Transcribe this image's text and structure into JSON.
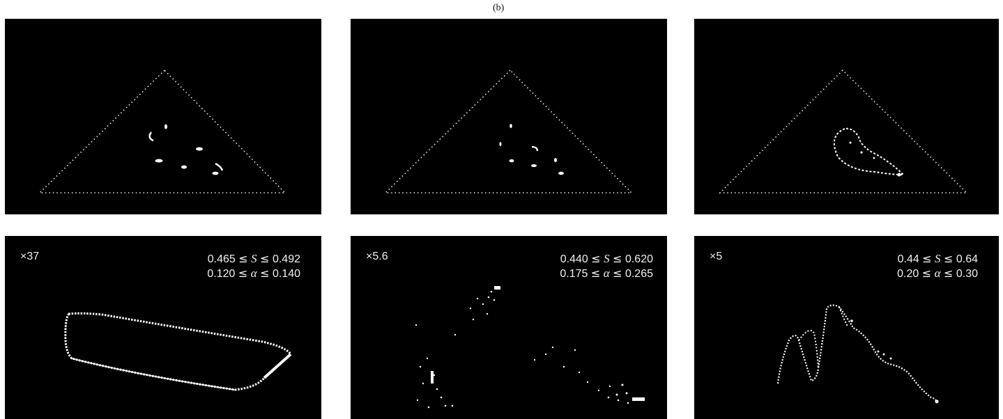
{
  "figure_label": "(b)",
  "panels": [
    {
      "magnification": "×37",
      "s_range": {
        "low": "0.465",
        "high": "0.492",
        "symbol": "S"
      },
      "alpha_range": {
        "low": "0.120",
        "high": "0.140",
        "symbol": "α"
      }
    },
    {
      "magnification": "×5.6",
      "s_range": {
        "low": "0.440",
        "high": "0.620",
        "symbol": "S"
      },
      "alpha_range": {
        "low": "0.175",
        "high": "0.265",
        "symbol": "α"
      }
    },
    {
      "magnification": "×5",
      "s_range": {
        "low": "0.44",
        "high": "0.64",
        "symbol": "S"
      },
      "alpha_range": {
        "low": "0.20",
        "high": "0.30",
        "symbol": "α"
      }
    }
  ],
  "colors": {
    "background": "#000000",
    "foreground": "#ffffff",
    "page": "#ffffff"
  }
}
